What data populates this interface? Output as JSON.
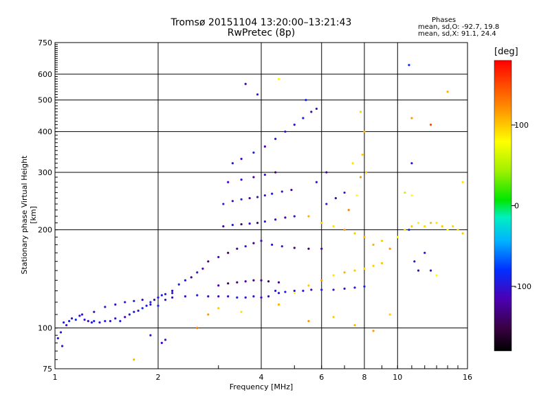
{
  "header": {
    "title_line1": "Tromsø 20151104 13:20:00–13:21:43",
    "title_line2": "RwPretec (8p)",
    "stats_heading": "Phases",
    "stats_o": "mean, sd,O: -92.7, 19.8",
    "stats_x": "mean, sd,X:  91.1, 24.4"
  },
  "colorbar": {
    "label": "[deg]",
    "ticks": [
      "100",
      "0",
      "-100"
    ],
    "tick_values": [
      100,
      0,
      -100
    ],
    "range": [
      -180,
      180
    ]
  },
  "chart_data": {
    "type": "scatter",
    "title": "Tromsø 20151104 13:20:00–13:21:43",
    "subtitle": "RwPretec (8p)",
    "xlabel": "Frequency [MHz]",
    "ylabel": "Stationary phase Virtual Height [km]",
    "x_scale": "log",
    "y_scale": "log",
    "xlim": [
      1,
      16
    ],
    "ylim": [
      75,
      750
    ],
    "x_ticks": [
      1,
      2,
      4,
      6,
      8,
      10,
      16
    ],
    "y_ticks": [
      75,
      100,
      200,
      300,
      400,
      500,
      600,
      750
    ],
    "x_gridlines": [
      2,
      4,
      6,
      8,
      10
    ],
    "y_gridlines": [
      100,
      200,
      300,
      400,
      500,
      600
    ],
    "grid": true,
    "color_encoding": "phase in degrees",
    "series": [
      {
        "points": [
          [
            1.02,
            93,
            -95
          ],
          [
            1.04,
            97,
            -100
          ],
          [
            1.05,
            88,
            -105
          ],
          [
            1.06,
            104,
            -90
          ],
          [
            1.08,
            102,
            -110
          ],
          [
            1.1,
            105,
            -95
          ],
          [
            1.12,
            107,
            -100
          ],
          [
            1.15,
            106,
            -85
          ],
          [
            1.18,
            109,
            -105
          ],
          [
            1.2,
            110,
            -95
          ],
          [
            1.22,
            106,
            -100
          ],
          [
            1.25,
            105,
            -110
          ],
          [
            1.28,
            104,
            -95
          ],
          [
            1.3,
            105,
            -90
          ],
          [
            1.35,
            104,
            -100
          ],
          [
            1.4,
            105,
            -95
          ],
          [
            1.45,
            105,
            -105
          ],
          [
            1.5,
            107,
            -100
          ],
          [
            1.55,
            105,
            -90
          ],
          [
            1.6,
            108,
            -110
          ],
          [
            1.65,
            110,
            -95
          ],
          [
            1.7,
            112,
            -100
          ],
          [
            1.75,
            113,
            -105
          ],
          [
            1.8,
            115,
            -90
          ],
          [
            1.85,
            117,
            -100
          ],
          [
            1.9,
            120,
            -95
          ],
          [
            1.95,
            122,
            -110
          ],
          [
            2.0,
            124,
            -100
          ],
          [
            2.05,
            126,
            -90
          ],
          [
            2.1,
            127,
            -95
          ],
          [
            2.2,
            130,
            -105
          ],
          [
            2.3,
            136,
            -90
          ],
          [
            2.4,
            140,
            -100
          ],
          [
            2.5,
            143,
            -120
          ],
          [
            2.6,
            148,
            -95
          ],
          [
            2.7,
            152,
            -110
          ],
          [
            2.8,
            160,
            -130
          ],
          [
            1.3,
            112,
            -100
          ],
          [
            1.4,
            116,
            -95
          ],
          [
            1.5,
            118,
            -105
          ],
          [
            1.6,
            120,
            -100
          ],
          [
            1.7,
            121,
            -90
          ],
          [
            1.8,
            122,
            -110
          ],
          [
            1.9,
            118,
            -100
          ],
          [
            2.0,
            117,
            -95
          ],
          [
            2.1,
            122,
            -100
          ],
          [
            2.2,
            128,
            -105
          ],
          [
            2.2,
            124,
            -110
          ],
          [
            2.4,
            125,
            -100
          ],
          [
            2.6,
            126,
            -95
          ],
          [
            2.8,
            125,
            -105
          ],
          [
            3.0,
            125,
            -110
          ],
          [
            3.2,
            125,
            -100
          ],
          [
            3.4,
            124,
            -95
          ],
          [
            3.6,
            124,
            -105
          ],
          [
            3.8,
            125,
            -100
          ],
          [
            4.0,
            124,
            -110
          ],
          [
            4.2,
            125,
            -95
          ],
          [
            4.5,
            128,
            -100
          ],
          [
            3.0,
            135,
            -120
          ],
          [
            3.2,
            137,
            -140
          ],
          [
            3.4,
            138,
            -130
          ],
          [
            3.6,
            139,
            -120
          ],
          [
            3.8,
            140,
            -135
          ],
          [
            4.0,
            140,
            -125
          ],
          [
            4.2,
            139,
            -140
          ],
          [
            4.5,
            138,
            -130
          ],
          [
            4.4,
            130,
            -100
          ],
          [
            4.7,
            129,
            -95
          ],
          [
            5.0,
            130,
            -105
          ],
          [
            5.3,
            130,
            -100
          ],
          [
            5.6,
            131,
            -110
          ],
          [
            6.0,
            131,
            -95
          ],
          [
            6.5,
            131,
            -100
          ],
          [
            7.0,
            132,
            -105
          ],
          [
            7.5,
            133,
            -100
          ],
          [
            8.0,
            134,
            -95
          ],
          [
            5.0,
            128,
            80
          ],
          [
            5.5,
            135,
            100
          ],
          [
            6.0,
            140,
            120
          ],
          [
            6.5,
            145,
            90
          ],
          [
            7.0,
            148,
            110
          ],
          [
            7.5,
            150,
            100
          ],
          [
            8.0,
            152,
            95
          ],
          [
            8.5,
            155,
            100
          ],
          [
            9.0,
            158,
            105
          ],
          [
            3.0,
            165,
            -110
          ],
          [
            3.2,
            170,
            -140
          ],
          [
            3.4,
            175,
            -120
          ],
          [
            3.6,
            178,
            -100
          ],
          [
            3.8,
            182,
            -130
          ],
          [
            4.0,
            185,
            -110
          ],
          [
            4.3,
            180,
            -100
          ],
          [
            4.6,
            178,
            -95
          ],
          [
            5.0,
            176,
            -130
          ],
          [
            5.5,
            175,
            -140
          ],
          [
            6.0,
            175,
            -120
          ],
          [
            3.1,
            205,
            -120
          ],
          [
            3.3,
            207,
            -100
          ],
          [
            3.5,
            208,
            -130
          ],
          [
            3.7,
            209,
            -110
          ],
          [
            3.9,
            210,
            -120
          ],
          [
            4.1,
            212,
            -100
          ],
          [
            4.4,
            215,
            -110
          ],
          [
            4.7,
            218,
            -120
          ],
          [
            5.0,
            220,
            -100
          ],
          [
            3.1,
            240,
            -100
          ],
          [
            3.3,
            245,
            -110
          ],
          [
            3.5,
            248,
            -95
          ],
          [
            3.7,
            250,
            -120
          ],
          [
            3.9,
            252,
            -100
          ],
          [
            4.1,
            255,
            -110
          ],
          [
            4.3,
            258,
            -95
          ],
          [
            4.6,
            262,
            -100
          ],
          [
            4.9,
            265,
            -120
          ],
          [
            3.2,
            280,
            -110
          ],
          [
            3.5,
            285,
            -100
          ],
          [
            3.8,
            290,
            -120
          ],
          [
            4.1,
            295,
            -100
          ],
          [
            4.4,
            300,
            -130
          ],
          [
            3.3,
            320,
            -100
          ],
          [
            3.5,
            330,
            -110
          ],
          [
            3.8,
            345,
            -95
          ],
          [
            4.1,
            360,
            -120
          ],
          [
            4.4,
            380,
            -100
          ],
          [
            4.7,
            400,
            -110
          ],
          [
            5.0,
            420,
            -100
          ],
          [
            5.3,
            440,
            -95
          ],
          [
            5.6,
            460,
            -110
          ],
          [
            3.6,
            560,
            -120
          ],
          [
            3.9,
            520,
            -100
          ],
          [
            4.5,
            580,
            80
          ],
          [
            5.4,
            500,
            -90
          ],
          [
            5.8,
            470,
            -100
          ],
          [
            5.5,
            220,
            110
          ],
          [
            6.0,
            210,
            100
          ],
          [
            6.5,
            205,
            90
          ],
          [
            7.0,
            200,
            120
          ],
          [
            7.5,
            195,
            100
          ],
          [
            8.0,
            190,
            110
          ],
          [
            7.2,
            230,
            130
          ],
          [
            7.6,
            255,
            80
          ],
          [
            7.8,
            290,
            120
          ],
          [
            8.1,
            300,
            100
          ],
          [
            6.2,
            240,
            -100
          ],
          [
            6.6,
            250,
            -110
          ],
          [
            7.0,
            260,
            -95
          ],
          [
            5.8,
            280,
            -100
          ],
          [
            6.2,
            300,
            -120
          ],
          [
            7.4,
            320,
            90
          ],
          [
            7.9,
            340,
            100
          ],
          [
            8.0,
            400,
            110
          ],
          [
            7.8,
            460,
            95
          ],
          [
            8.5,
            180,
            110
          ],
          [
            9.0,
            185,
            100
          ],
          [
            9.5,
            175,
            120
          ],
          [
            10.0,
            190,
            80
          ],
          [
            10.5,
            200,
            90
          ],
          [
            11.0,
            205,
            100
          ],
          [
            11.5,
            210,
            85
          ],
          [
            12.0,
            205,
            95
          ],
          [
            12.5,
            210,
            105
          ],
          [
            13.0,
            210,
            90
          ],
          [
            13.5,
            205,
            100
          ],
          [
            14.0,
            200,
            80
          ],
          [
            14.5,
            205,
            95
          ],
          [
            15.0,
            200,
            90
          ],
          [
            15.5,
            195,
            100
          ],
          [
            10.5,
            260,
            60
          ],
          [
            11.0,
            255,
            80
          ],
          [
            10.8,
            200,
            -90
          ],
          [
            11.2,
            160,
            -100
          ],
          [
            11.5,
            150,
            -110
          ],
          [
            12.0,
            170,
            -100
          ],
          [
            12.5,
            150,
            -95
          ],
          [
            13.0,
            145,
            80
          ],
          [
            10.8,
            640,
            -80
          ],
          [
            11.0,
            440,
            120
          ],
          [
            11.0,
            320,
            -100
          ],
          [
            12.5,
            420,
            150
          ],
          [
            14.0,
            530,
            110
          ],
          [
            15.5,
            280,
            90
          ],
          [
            2.6,
            100,
            130
          ],
          [
            2.8,
            110,
            120
          ],
          [
            3.0,
            115,
            100
          ],
          [
            3.5,
            112,
            90
          ],
          [
            4.5,
            118,
            110
          ],
          [
            5.5,
            105,
            120
          ],
          [
            6.5,
            108,
            100
          ],
          [
            7.5,
            102,
            110
          ],
          [
            8.5,
            98,
            120
          ],
          [
            9.5,
            110,
            100
          ],
          [
            1.7,
            80,
            110
          ],
          [
            1.9,
            95,
            -100
          ],
          [
            2.05,
            90,
            -110
          ],
          [
            2.1,
            92,
            -95
          ]
        ]
      }
    ]
  }
}
